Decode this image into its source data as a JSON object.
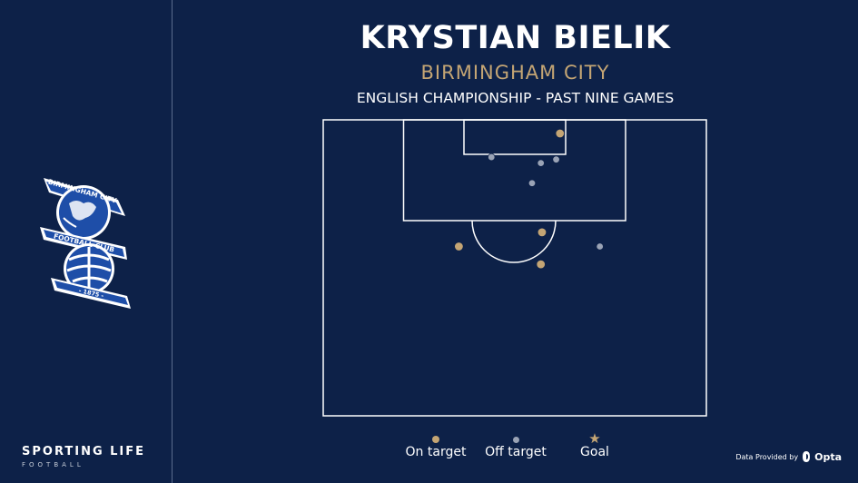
{
  "header": {
    "title": "KRYSTIAN BIELIK",
    "subtitle": "BIRMINGHAM CITY",
    "competition": "ENGLISH CHAMPIONSHIP - PAST NINE GAMES"
  },
  "crest": {
    "top_text": "BIRMINGHAM CITY",
    "middle_text": "FOOTBALL CLUB",
    "year": "- 1875 -",
    "colors": {
      "blue": "#1e4ea8",
      "white": "#ffffff"
    }
  },
  "brand": {
    "name": "SPORTING LIFE",
    "sub": "FOOTBALL"
  },
  "credit": {
    "prefix": "Data Provided by",
    "provider": "Opta"
  },
  "legend": {
    "on_target": "On target",
    "off_target": "Off target",
    "goal": "Goal"
  },
  "colors": {
    "background": "#0d2148",
    "on_target": "#c4a574",
    "off_target": "#9aa3b5",
    "lines": "#ffffff",
    "subtitle": "#c4a574"
  },
  "chart_data": {
    "type": "scatter",
    "pitch_dimensions": {
      "width": 100,
      "depth": 50
    },
    "series": [
      {
        "name": "On target",
        "points": [
          {
            "x": 61.8,
            "y": 2.3
          },
          {
            "x": 57.1,
            "y": 19.0
          },
          {
            "x": 35.4,
            "y": 21.4
          },
          {
            "x": 56.8,
            "y": 24.4
          }
        ]
      },
      {
        "name": "Off target",
        "points": [
          {
            "x": 43.9,
            "y": 6.3
          },
          {
            "x": 56.8,
            "y": 7.3
          },
          {
            "x": 60.8,
            "y": 6.7
          },
          {
            "x": 54.5,
            "y": 10.7
          },
          {
            "x": 72.2,
            "y": 21.4
          }
        ]
      },
      {
        "name": "Goal",
        "points": []
      }
    ]
  }
}
